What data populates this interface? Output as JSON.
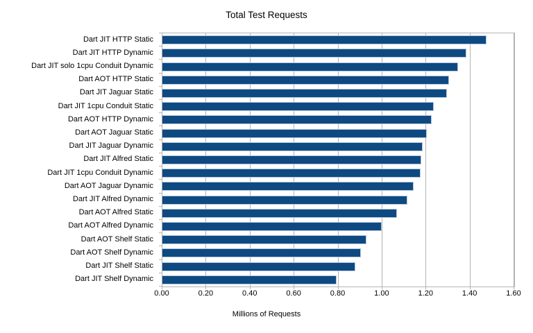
{
  "chart_title": "Total Test Requests",
  "colors": {
    "bar_fill": "#0e4a81",
    "bar_border": "#b5c6dc",
    "grid": "#b3b3b3",
    "frame": "#b3b3b3",
    "text": "#000000",
    "background": "#ffffff"
  },
  "chart_data": {
    "type": "bar",
    "orientation": "horizontal",
    "title": "Total Test Requests",
    "xlabel": "Millions of Requests",
    "ylabel": "",
    "xlim": [
      0.0,
      1.6
    ],
    "x_ticks": [
      0.0,
      0.2,
      0.4,
      0.6,
      0.8,
      1.0,
      1.2,
      1.4,
      1.6
    ],
    "x_tick_labels": [
      "0.00",
      "0.20",
      "0.40",
      "0.60",
      "0.80",
      "1.00",
      "1.20",
      "1.40",
      "1.60"
    ],
    "grid": "vertical",
    "legend": "none",
    "categories": [
      "Dart JIT HTTP Static",
      "Dart JIT HTTP Dynamic",
      "Dart JIT solo 1cpu Conduit Dynamic",
      "Dart AOT HTTP Static",
      "Dart JIT Jaguar Static",
      "Dart JIT 1cpu Conduit Static",
      "Dart AOT HTTP Dynamic",
      "Dart AOT Jaguar Static",
      "Dart JIT Jaguar Dynamic",
      "Dart JIT Alfred Static",
      "Dart JIT 1cpu Conduit Dynamic",
      "Dart AOT Jaguar Dynamic",
      "Dart JIT Alfred Dynamic",
      "Dart AOT Alfred Static",
      "Dart AOT Alfred Dynamic",
      "Dart AOT Shelf Static",
      "Dart AOT Shelf Dynamic",
      "Dart JIT Shelf Static",
      "Dart JIT Shelf Dynamic"
    ],
    "values": [
      1.47,
      1.38,
      1.34,
      1.3,
      1.29,
      1.23,
      1.22,
      1.2,
      1.18,
      1.175,
      1.17,
      1.14,
      1.11,
      1.065,
      0.995,
      0.925,
      0.9,
      0.875,
      0.79
    ]
  }
}
